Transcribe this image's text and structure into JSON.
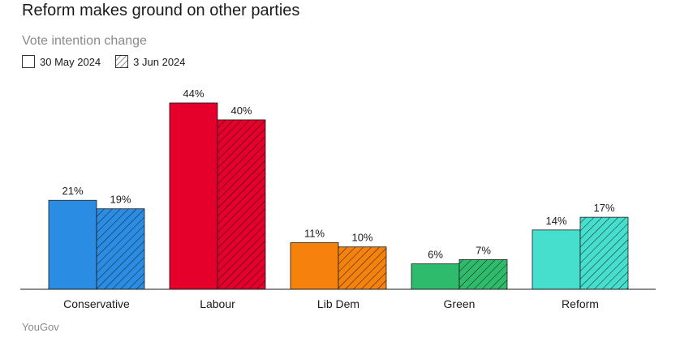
{
  "chart_data": {
    "type": "bar",
    "title": "Reform makes ground on other parties",
    "subtitle": "Vote intention change",
    "categories": [
      "Conservative",
      "Labour",
      "Lib Dem",
      "Green",
      "Reform"
    ],
    "colors": [
      "#2a8de3",
      "#e4002b",
      "#f5820d",
      "#2fbb6c",
      "#46dfce"
    ],
    "series": [
      {
        "name": "30 May 2024",
        "style": "solid",
        "values": [
          21,
          44,
          11,
          6,
          14
        ]
      },
      {
        "name": "3 Jun 2024",
        "style": "hatched",
        "values": [
          19,
          40,
          10,
          7,
          17
        ]
      }
    ],
    "value_suffix": "%",
    "ylim": [
      0,
      44
    ],
    "legend_position": "top-left",
    "grid": false,
    "source": "YouGov"
  }
}
